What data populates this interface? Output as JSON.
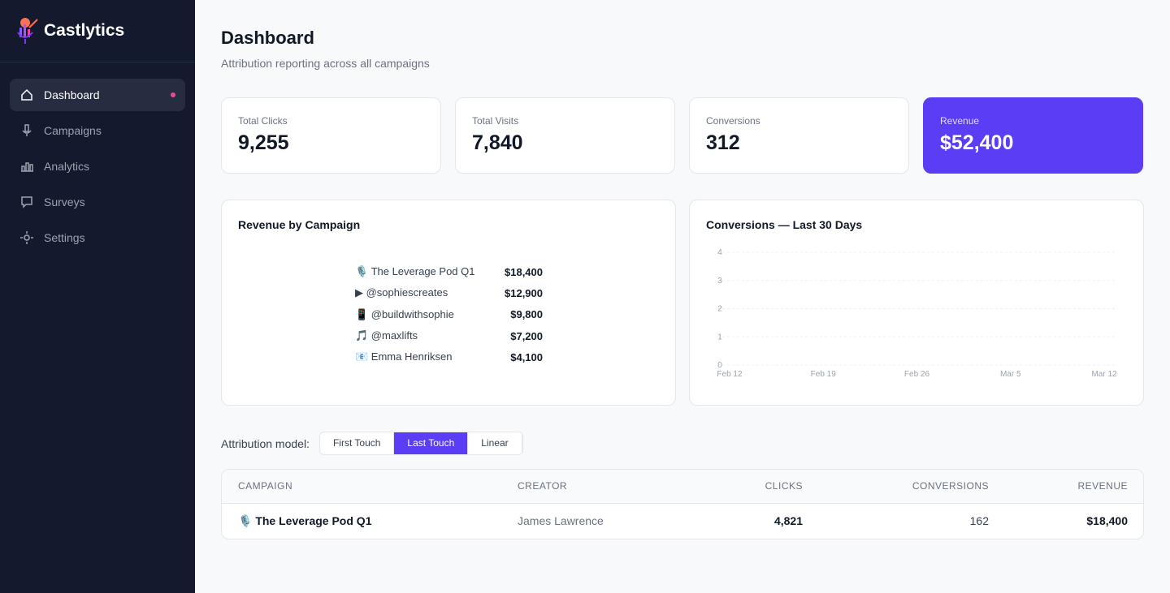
{
  "sidebar": {
    "brand": "Castlytics",
    "nav": [
      "Dashboard",
      "Campaigns",
      "Analytics",
      "Surveys",
      "Settings"
    ],
    "active": 0
  },
  "header": {
    "title": "Dashboard",
    "subtitle": "Attribution reporting across all campaigns"
  },
  "stats": [
    {
      "label": "Total Clicks",
      "value": "9,255"
    },
    {
      "label": "Total Visits",
      "value": "7,840"
    },
    {
      "label": "Conversions",
      "value": "312"
    },
    {
      "label": "Revenue",
      "value": "$52,400"
    }
  ],
  "revenue_by_campaign": {
    "title": "Revenue by Campaign",
    "rows": [
      {
        "name": "🎙️ The Leverage Pod Q1",
        "value": "$18,400"
      },
      {
        "name": "▶ @sophiescreates",
        "value": "$12,900"
      },
      {
        "name": "📱 @buildwithsophie",
        "value": "$9,800"
      },
      {
        "name": "🎵 @maxlifts",
        "value": "$7,200"
      },
      {
        "name": "📧 Emma Henriksen",
        "value": "$4,100"
      }
    ]
  },
  "conversions_chart": {
    "title": "Conversions — Last 30 Days",
    "ylim": [
      0,
      4
    ],
    "yticks": [
      0,
      1,
      2,
      3,
      4
    ],
    "xticks": [
      "Feb 12",
      "Feb 19",
      "Feb 26",
      "Mar 5",
      "Mar 12"
    ]
  },
  "attribution": {
    "label": "Attribution model:",
    "options": [
      "First Touch",
      "Last Touch",
      "Linear"
    ],
    "selected": 1
  },
  "table": {
    "columns": [
      "CAMPAIGN",
      "CREATOR",
      "CLICKS",
      "CONVERSIONS",
      "REVENUE"
    ],
    "rows": [
      [
        "🎙️ The Leverage Pod Q1",
        "James Lawrence",
        "4,821",
        "162",
        "$18,400"
      ]
    ]
  }
}
